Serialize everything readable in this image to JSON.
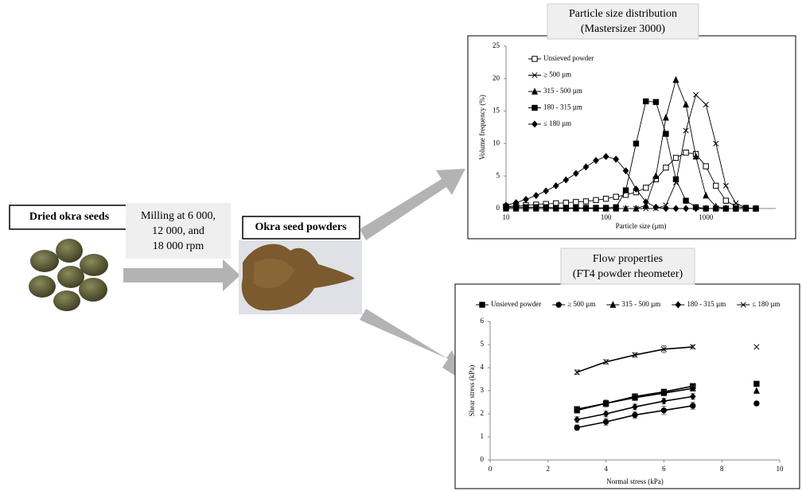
{
  "labels": {
    "seeds": "Dried okra seeds",
    "milling": [
      "Milling at 6 000,",
      "12 000, and",
      "18 000 rpm"
    ],
    "powders": "Okra seed powders"
  },
  "chart_data": [
    {
      "type": "line",
      "title": "Particle size distribution",
      "subtitle": "(Mastersizer 3000)",
      "x_label": "Particle size (μm)",
      "y_label": "Volume frequency (%)",
      "xscale": "log",
      "xlim": [
        10,
        5000
      ],
      "xticks": [
        10,
        100,
        1000
      ],
      "ylim": [
        0,
        25
      ],
      "yticks": [
        0,
        5,
        10,
        15,
        20,
        25
      ],
      "grid": false,
      "legend": "upper left",
      "x": [
        10,
        12.6,
        15.8,
        20,
        25.1,
        31.6,
        39.8,
        50.1,
        63.1,
        79.4,
        100,
        126,
        158,
        200,
        251,
        316,
        398,
        501,
        631,
        794,
        1000,
        1259,
        1585,
        1995,
        2512,
        3162
      ],
      "series": [
        {
          "name": "Unsieved powder",
          "color": "#000000",
          "marker": "open-square",
          "values": [
            0.3,
            0.4,
            0.5,
            0.6,
            0.7,
            0.8,
            0.9,
            1.0,
            1.1,
            1.3,
            1.5,
            1.8,
            2.1,
            2.5,
            3.2,
            4.5,
            6.3,
            7.8,
            8.6,
            8.4,
            6.5,
            3.5,
            1.2,
            0.3,
            0.1,
            0
          ]
        },
        {
          "name": "≥ 500 µm",
          "color": "#000000",
          "marker": "x",
          "values": [
            0,
            0,
            0,
            0,
            0,
            0,
            0,
            0,
            0,
            0,
            0,
            0,
            0,
            0,
            0,
            0,
            0.5,
            4,
            12,
            17.5,
            16,
            10,
            3.5,
            0.8,
            0.1,
            0
          ]
        },
        {
          "name": "315 - 500 µm",
          "color": "#000000",
          "marker": "triangle",
          "values": [
            0,
            0,
            0,
            0,
            0,
            0,
            0,
            0,
            0,
            0,
            0,
            0,
            0,
            0,
            0.5,
            5,
            14,
            19.8,
            16,
            8,
            2,
            0.3,
            0,
            0,
            0,
            0
          ]
        },
        {
          "name": "180 - 315 µm",
          "color": "#000000",
          "marker": "square",
          "values": [
            0.2,
            0.2,
            0.2,
            0.2,
            0.2,
            0.1,
            0.1,
            0.1,
            0.1,
            0.1,
            0.1,
            0.2,
            2.8,
            10,
            16.5,
            16.4,
            11.5,
            4.5,
            1.2,
            0.2,
            0,
            0,
            0,
            0,
            0,
            0
          ]
        },
        {
          "name": "≤ 180 µm",
          "color": "#000000",
          "marker": "diamond",
          "values": [
            0.5,
            0.9,
            1.4,
            2.0,
            2.7,
            3.5,
            4.4,
            5.4,
            6.4,
            7.4,
            8.0,
            7.6,
            5.8,
            3.0,
            1.0,
            0.2,
            0,
            0,
            0,
            0,
            0,
            0,
            0,
            0,
            0,
            0
          ]
        }
      ]
    },
    {
      "type": "line",
      "title": "Flow properties",
      "subtitle": "(FT4 powder rheometer)",
      "x_label": "Normal stress (kPa)",
      "y_label": "Shear stress (kPa)",
      "xlim": [
        0,
        10
      ],
      "xticks": [
        0,
        2,
        4,
        6,
        8,
        10
      ],
      "ylim": [
        0,
        6
      ],
      "yticks": [
        0,
        1,
        2,
        3,
        4,
        5,
        6
      ],
      "grid": false,
      "legend": "top",
      "x": [
        3,
        4,
        5,
        6,
        7,
        8,
        9.2
      ],
      "series": [
        {
          "name": "Unsieved powder",
          "color": "#000000",
          "marker": "square",
          "values": [
            2.2,
            2.45,
            2.75,
            2.95,
            3.2,
            null,
            3.3
          ],
          "errors": [
            0.1,
            0.12,
            0.12,
            0.12,
            0.1,
            null,
            null
          ]
        },
        {
          "name": "≥ 500 µm",
          "color": "#000000",
          "marker": "circle",
          "values": [
            1.4,
            1.65,
            1.95,
            2.15,
            2.35,
            null,
            2.45
          ],
          "errors": [
            0.12,
            0.15,
            0.15,
            0.18,
            0.15,
            null,
            null
          ]
        },
        {
          "name": "315 - 500 µm",
          "color": "#000000",
          "marker": "triangle",
          "values": [
            2.15,
            2.45,
            2.7,
            2.9,
            3.1,
            null,
            3.0
          ],
          "errors": [
            0.1,
            0.15,
            0.12,
            0.1,
            0.1,
            null,
            null
          ]
        },
        {
          "name": "180 - 315 µm",
          "color": "#000000",
          "marker": "diamond",
          "values": [
            1.75,
            2.0,
            2.3,
            2.55,
            2.75,
            null,
            null
          ],
          "errors": [
            0.12,
            0.12,
            0.12,
            0.12,
            0.12,
            null,
            null
          ]
        },
        {
          "name": "≤ 180 µm",
          "color": "#000000",
          "marker": "x",
          "values": [
            3.8,
            4.25,
            4.55,
            4.8,
            4.9,
            null,
            4.9
          ],
          "errors": [
            0.1,
            0.1,
            0.1,
            0.15,
            0.08,
            null,
            null
          ]
        }
      ]
    }
  ]
}
